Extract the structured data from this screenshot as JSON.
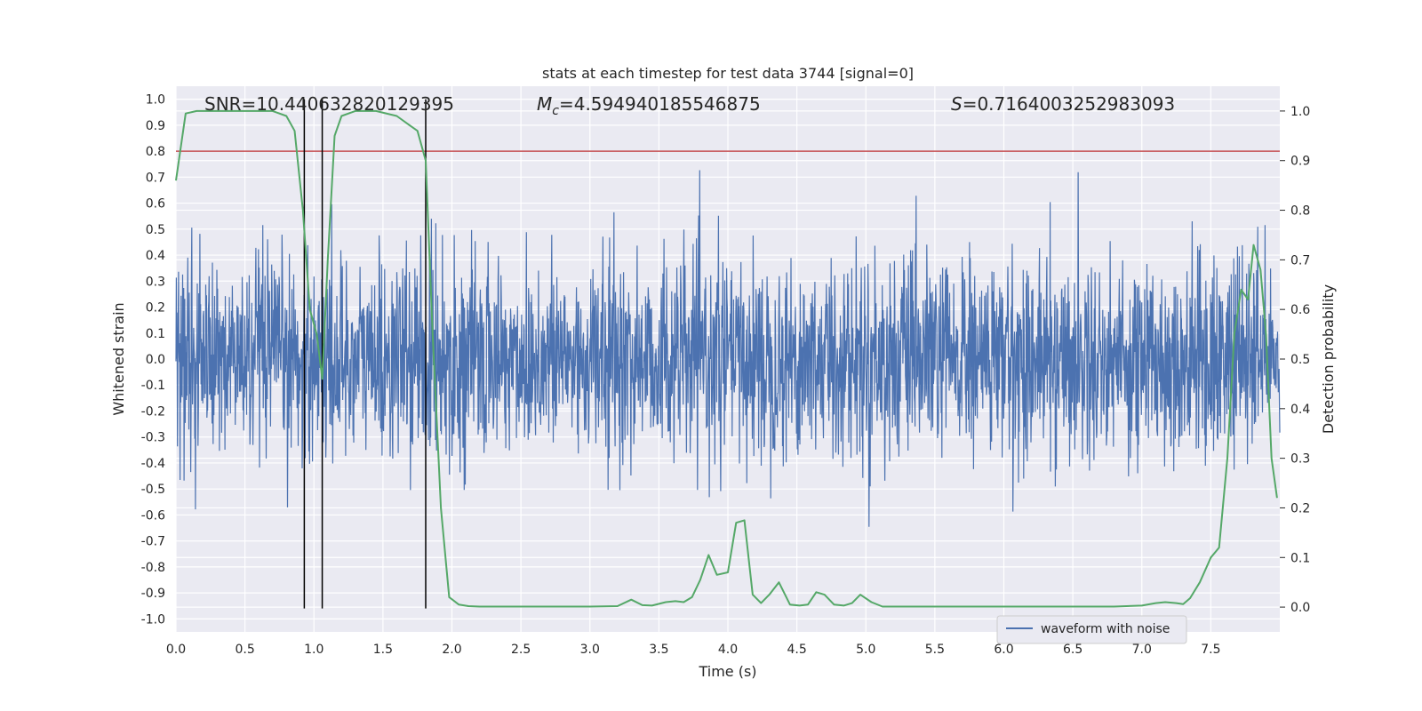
{
  "colors": {
    "background": "#eaeaf2",
    "grid": "#ffffff",
    "waveform": "#4c72b0",
    "probability": "#55a868",
    "threshold": "#c44e52",
    "marker": "#000000"
  },
  "chart_data": {
    "type": "line",
    "title": "stats at each timestep for test data 3744 [signal=0]",
    "xlabel": "Time (s)",
    "ylabel_left": "Whitened strain",
    "ylabel_right": "Detection probability",
    "xlim": [
      0.0,
      8.0
    ],
    "ylim_left": [
      -1.05,
      1.05
    ],
    "ylim_right": [
      -0.05,
      1.05
    ],
    "x_ticks": [
      "0.0",
      "0.5",
      "1.0",
      "1.5",
      "2.0",
      "2.5",
      "3.0",
      "3.5",
      "4.0",
      "4.5",
      "5.0",
      "5.5",
      "6.0",
      "6.5",
      "7.0",
      "7.5"
    ],
    "y_ticks_left": [
      "1.0",
      "0.9",
      "0.8",
      "0.7",
      "0.6",
      "0.5",
      "0.4",
      "0.3",
      "0.2",
      "0.1",
      "0.0",
      "-0.1",
      "-0.2",
      "-0.3",
      "-0.4",
      "-0.5",
      "-0.6",
      "-0.7",
      "-0.8",
      "-0.9",
      "-1.0"
    ],
    "y_ticks_right": [
      "1.0",
      "0.9",
      "0.8",
      "0.7",
      "0.6",
      "0.5",
      "0.4",
      "0.3",
      "0.2",
      "0.1",
      "0.0"
    ],
    "annotations": {
      "snr": "SNR=10.440632820129395",
      "mc_symbol": "M",
      "mc_sub": "c",
      "mc_value": "=4.594940185546875",
      "s_symbol": "S",
      "s_value": "=0.7164003252983093"
    },
    "legend": [
      "waveform with noise"
    ],
    "threshold_left": 0.8,
    "marker_times": [
      0.93,
      1.06,
      1.81
    ],
    "marker_range": [
      -0.96,
      1.0
    ],
    "probability_series": {
      "name": "Detection probability",
      "t": [
        0.0,
        0.07,
        0.15,
        0.25,
        0.4,
        0.55,
        0.7,
        0.8,
        0.86,
        0.92,
        0.97,
        1.02,
        1.06,
        1.1,
        1.15,
        1.2,
        1.3,
        1.45,
        1.6,
        1.7,
        1.75,
        1.81,
        1.86,
        1.92,
        1.98,
        2.05,
        2.12,
        2.2,
        2.4,
        2.7,
        3.0,
        3.2,
        3.3,
        3.38,
        3.45,
        3.55,
        3.62,
        3.68,
        3.74,
        3.8,
        3.86,
        3.92,
        4.0,
        4.06,
        4.12,
        4.18,
        4.24,
        4.3,
        4.37,
        4.45,
        4.52,
        4.58,
        4.64,
        4.7,
        4.77,
        4.84,
        4.9,
        4.96,
        5.04,
        5.12,
        5.3,
        5.6,
        5.9,
        6.2,
        6.5,
        6.8,
        7.0,
        7.1,
        7.17,
        7.25,
        7.3,
        7.35,
        7.42,
        7.5,
        7.56,
        7.62,
        7.67,
        7.72,
        7.77,
        7.81,
        7.86,
        7.9,
        7.94,
        7.98
      ],
      "p": [
        0.86,
        0.995,
        1.0,
        1.0,
        1.0,
        1.0,
        1.0,
        0.99,
        0.96,
        0.8,
        0.6,
        0.55,
        0.46,
        0.7,
        0.95,
        0.99,
        1.0,
        1.0,
        0.99,
        0.97,
        0.96,
        0.9,
        0.55,
        0.2,
        0.02,
        0.005,
        0.002,
        0.001,
        0.001,
        0.001,
        0.001,
        0.002,
        0.015,
        0.004,
        0.003,
        0.01,
        0.012,
        0.01,
        0.02,
        0.055,
        0.105,
        0.065,
        0.07,
        0.17,
        0.175,
        0.025,
        0.008,
        0.025,
        0.05,
        0.005,
        0.003,
        0.005,
        0.03,
        0.025,
        0.005,
        0.003,
        0.008,
        0.025,
        0.01,
        0.001,
        0.001,
        0.001,
        0.001,
        0.001,
        0.001,
        0.001,
        0.003,
        0.008,
        0.01,
        0.008,
        0.006,
        0.018,
        0.05,
        0.1,
        0.12,
        0.3,
        0.55,
        0.64,
        0.62,
        0.73,
        0.68,
        0.55,
        0.3,
        0.22
      ]
    }
  }
}
